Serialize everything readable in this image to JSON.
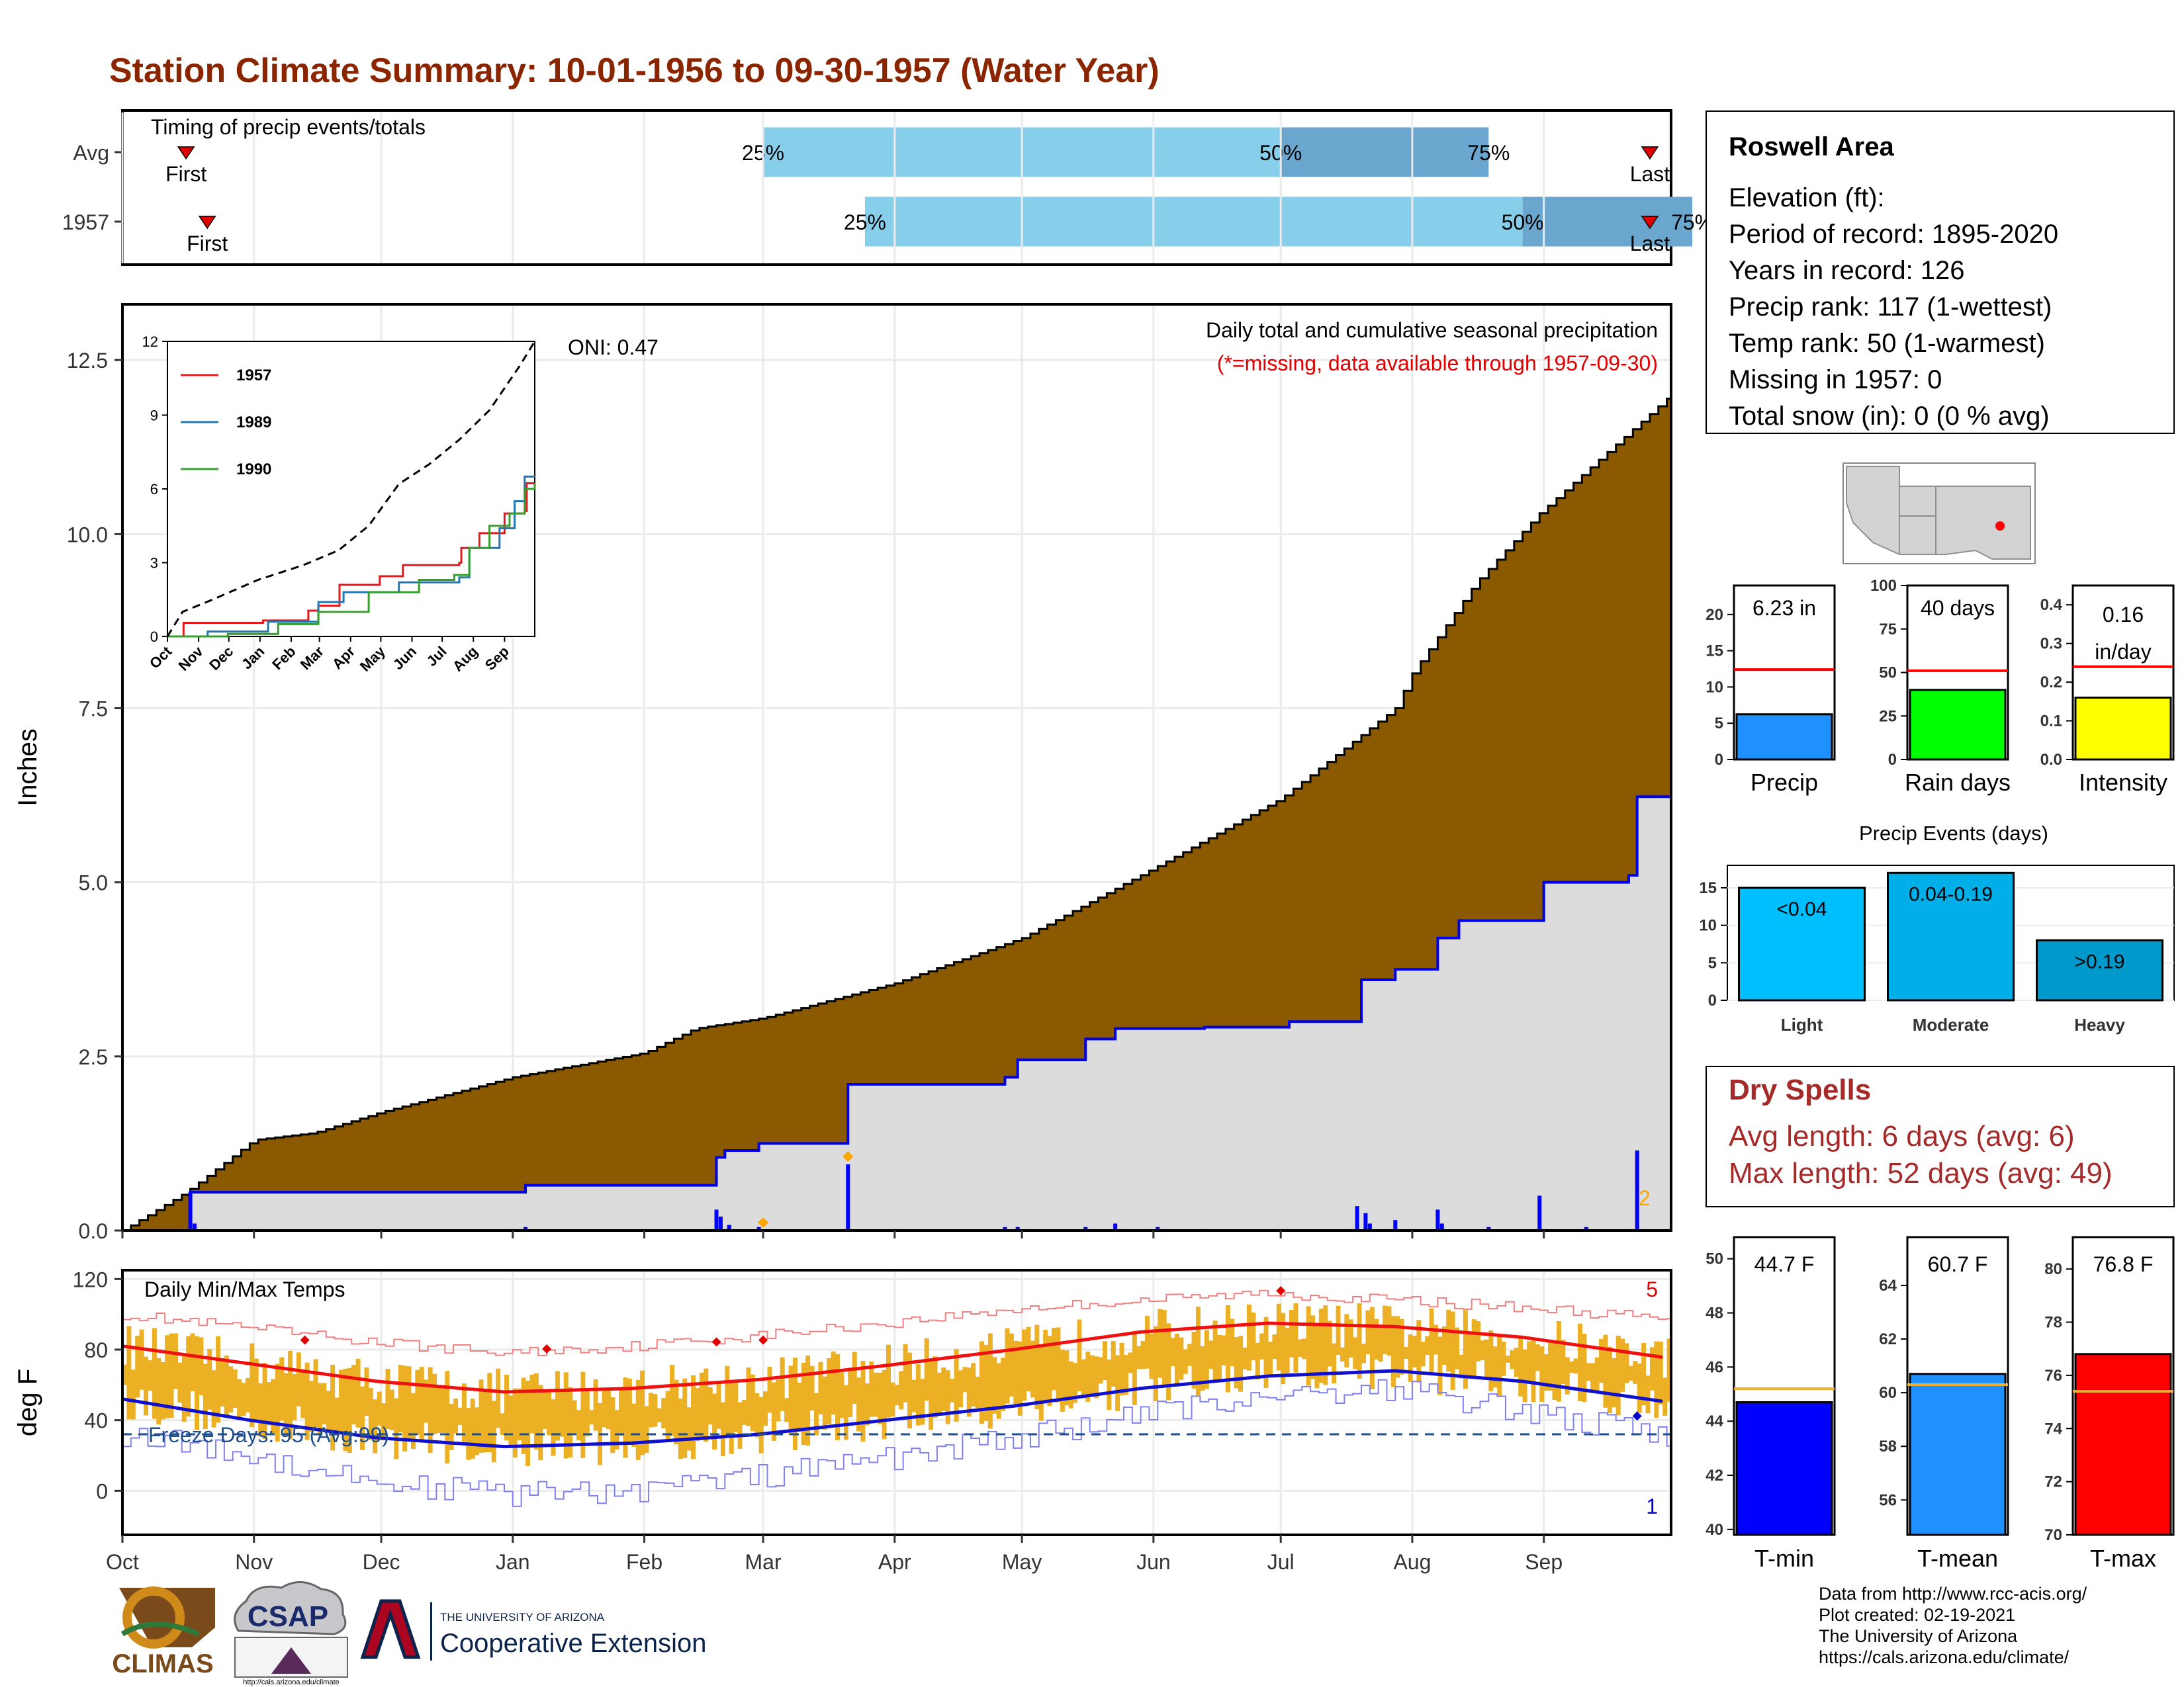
{
  "title": "Station Climate Summary: 10-01-1956 to 09-30-1957 (Water Year)",
  "timing": {
    "label": "Timing of precip events/totals",
    "rows": [
      {
        "name": "Avg",
        "first": "First",
        "last": "Last",
        "first_day": 15,
        "last_day": 360,
        "p25_day": 151,
        "p50_day": 273,
        "p75_day": 322
      },
      {
        "name": "1957",
        "first": "First",
        "last": "Last",
        "first_day": 20,
        "last_day": 360,
        "p25_day": 175,
        "p50_day": 330,
        "p75_day": 370
      }
    ],
    "labels": {
      "p25": "25%",
      "p50": "50%",
      "p75": "75%"
    },
    "colors": {
      "light": "#87ceeb",
      "dark": "#6aa6cd",
      "marker": "#e00000"
    }
  },
  "precip_panel": {
    "ylabel": "Inches",
    "yticks": [
      "0.0",
      "2.5",
      "5.0",
      "7.5",
      "10.0",
      "12.5"
    ],
    "ylim": [
      0,
      13.3
    ],
    "title": "Daily total and cumulative seasonal precipitation",
    "subtitle": "(*=missing, data available through 1957-09-30)",
    "oni": "ONI: 0.47",
    "count_label": "2",
    "colors": {
      "avg_fill": "#8b5a00",
      "year_fill": "#dcdcdc",
      "year_line": "#0000e6",
      "bars": "#0000ff",
      "marker": "#ffa500",
      "subtitle": "#e00000"
    }
  },
  "chart_data": [
    {
      "type": "area",
      "name": "cumulative-precip",
      "x_unit": "day of water year (0 = Oct 1)",
      "series": [
        {
          "name": "avg",
          "x": [
            0,
            15,
            31,
            45,
            61,
            92,
            123,
            135,
            151,
            182,
            212,
            243,
            273,
            300,
            304,
            319,
            334,
            365
          ],
          "y": [
            0,
            0.55,
            1.3,
            1.4,
            1.7,
            2.2,
            2.55,
            2.9,
            3.05,
            3.55,
            4.2,
            5.2,
            6.2,
            7.5,
            8.0,
            9.3,
            10.3,
            12.0
          ]
        },
        {
          "name": "1957",
          "x": [
            0,
            15,
            16,
            94,
            95,
            139,
            140,
            142,
            150,
            170,
            171,
            208,
            211,
            227,
            234,
            255,
            275,
            290,
            292,
            300,
            310,
            315,
            335,
            355,
            357,
            365
          ],
          "y": [
            0,
            0,
            0.55,
            0.55,
            0.65,
            0.65,
            1.05,
            1.15,
            1.25,
            1.25,
            2.1,
            2.2,
            2.45,
            2.75,
            2.9,
            2.92,
            3.0,
            3.0,
            3.6,
            3.75,
            4.2,
            4.45,
            5.0,
            5.1,
            6.23,
            6.23
          ]
        }
      ],
      "daily_bars": [
        {
          "day": 16,
          "value": 0.55
        },
        {
          "day": 17,
          "value": 0.1
        },
        {
          "day": 95,
          "value": 0.05
        },
        {
          "day": 140,
          "value": 0.3
        },
        {
          "day": 141,
          "value": 0.2
        },
        {
          "day": 143,
          "value": 0.08
        },
        {
          "day": 150,
          "value": 0.05
        },
        {
          "day": 171,
          "value": 0.95
        },
        {
          "day": 208,
          "value": 0.05
        },
        {
          "day": 211,
          "value": 0.05
        },
        {
          "day": 227,
          "value": 0.05
        },
        {
          "day": 234,
          "value": 0.1
        },
        {
          "day": 244,
          "value": 0.05
        },
        {
          "day": 255,
          "value": 0.02
        },
        {
          "day": 291,
          "value": 0.35
        },
        {
          "day": 293,
          "value": 0.25
        },
        {
          "day": 294,
          "value": 0.1
        },
        {
          "day": 300,
          "value": 0.15
        },
        {
          "day": 310,
          "value": 0.3
        },
        {
          "day": 311,
          "value": 0.1
        },
        {
          "day": 322,
          "value": 0.05
        },
        {
          "day": 334,
          "value": 0.5
        },
        {
          "day": 345,
          "value": 0.05
        },
        {
          "day": 357,
          "value": 1.15
        }
      ]
    },
    {
      "type": "line",
      "name": "inset-cumulative",
      "xlabels": [
        "Oct",
        "Nov",
        "Dec",
        "Jan",
        "Feb",
        "Mar",
        "Apr",
        "May",
        "Jun",
        "Jul",
        "Aug",
        "Sep"
      ],
      "yticks": [
        "0",
        "3",
        "6",
        "9",
        "12"
      ],
      "ylim": [
        0,
        12
      ],
      "series": [
        {
          "name": "1957",
          "color": "#e31a1c",
          "x": [
            0,
            15,
            16,
            94,
            95,
            139,
            140,
            150,
            170,
            171,
            211,
            234,
            290,
            292,
            310,
            335,
            355,
            357,
            365
          ],
          "y": [
            0,
            0,
            0.55,
            0.55,
            0.65,
            0.65,
            1.05,
            1.25,
            1.25,
            2.1,
            2.45,
            2.9,
            3.0,
            3.6,
            4.2,
            5.0,
            5.1,
            6.23,
            6.23
          ]
        },
        {
          "name": "1989",
          "color": "#1f78b4",
          "x": [
            0,
            40,
            100,
            150,
            175,
            230,
            290,
            300,
            330,
            345,
            355,
            365
          ],
          "y": [
            0,
            0.2,
            0.6,
            1.4,
            1.8,
            2.2,
            2.4,
            3.6,
            4.4,
            5.5,
            6.5,
            6.5
          ]
        },
        {
          "name": "1990",
          "color": "#33a02c",
          "x": [
            0,
            60,
            110,
            150,
            200,
            250,
            285,
            300,
            320,
            340,
            355,
            365
          ],
          "y": [
            0,
            0.1,
            0.5,
            1.0,
            1.8,
            2.3,
            2.5,
            3.6,
            4.5,
            5.0,
            6.0,
            6.2
          ]
        },
        {
          "name": "max",
          "color": "#000000",
          "x": [
            0,
            15,
            45,
            90,
            135,
            170,
            200,
            230,
            260,
            290,
            320,
            350,
            365
          ],
          "y": [
            0,
            1.0,
            1.5,
            2.3,
            2.9,
            3.5,
            4.5,
            6.2,
            7.0,
            8.0,
            9.2,
            11.0,
            12.0
          ]
        }
      ]
    },
    {
      "type": "line",
      "name": "temperature",
      "ylabel": "deg F",
      "title": "Daily Min/Max Temps",
      "freeze": "Freeze Days: 95 (Avg:99)",
      "ylim": [
        -25,
        125
      ],
      "yticks": [
        "0",
        "40",
        "80",
        "120"
      ],
      "freeze_line": 32,
      "count_top": "5",
      "count_bottom": "1",
      "months": [
        "Oct",
        "Nov",
        "Dec",
        "Jan",
        "Feb",
        "Mar",
        "Apr",
        "May",
        "Jun",
        "Jul",
        "Aug",
        "Sep"
      ],
      "month_days": [
        0,
        31,
        61,
        92,
        123,
        151,
        182,
        212,
        243,
        273,
        304,
        335
      ],
      "avg_max": {
        "x": [
          0,
          30,
          60,
          90,
          120,
          150,
          180,
          210,
          240,
          270,
          300,
          330,
          365
        ],
        "y": [
          82,
          72,
          62,
          56,
          58,
          63,
          71,
          80,
          90,
          95,
          93,
          87,
          75
        ]
      },
      "avg_min": {
        "x": [
          0,
          30,
          60,
          90,
          120,
          150,
          180,
          210,
          240,
          270,
          300,
          330,
          365
        ],
        "y": [
          52,
          40,
          30,
          25,
          27,
          32,
          40,
          48,
          58,
          65,
          68,
          62,
          50
        ]
      },
      "record_max": {
        "x": [
          0,
          30,
          60,
          90,
          120,
          150,
          180,
          210,
          240,
          270,
          300,
          330,
          365
        ],
        "y": [
          100,
          92,
          84,
          78,
          82,
          88,
          95,
          103,
          108,
          112,
          108,
          104,
          97
        ]
      },
      "record_min": {
        "x": [
          0,
          30,
          60,
          90,
          120,
          150,
          180,
          210,
          240,
          270,
          300,
          330,
          365
        ],
        "y": [
          32,
          20,
          5,
          -2,
          0,
          8,
          18,
          30,
          42,
          55,
          58,
          45,
          30
        ]
      },
      "colors": {
        "bars": "#ebb024",
        "max": "#ee1111",
        "min": "#1111cc",
        "record_max": "#f08080",
        "record_min": "#8080f0",
        "freeze": "#1f4e8c"
      }
    },
    {
      "type": "bar",
      "name": "precip-gauge",
      "label": "Precip",
      "value_label": "6.23 in",
      "value": 6.23,
      "avg": 12.4,
      "ylim": [
        0,
        24
      ],
      "yticks": [
        "0",
        "5",
        "10",
        "15",
        "20"
      ],
      "color": "#1e90ff"
    },
    {
      "type": "bar",
      "name": "raindays-gauge",
      "label": "Rain days",
      "value_label": "40 days",
      "value": 40,
      "avg": 51,
      "ylim": [
        0,
        100
      ],
      "yticks": [
        "0",
        "25",
        "50",
        "75",
        "100"
      ],
      "color": "#00ff00"
    },
    {
      "type": "bar",
      "name": "intensity-gauge",
      "label": "Intensity",
      "value_label": "0.16 in/day",
      "value": 0.16,
      "avg": 0.24,
      "ylim": [
        0,
        0.45
      ],
      "yticks": [
        "0.0",
        "0.1",
        "0.2",
        "0.3",
        "0.4"
      ],
      "color": "#ffff00"
    },
    {
      "type": "bar",
      "name": "precip-events",
      "title": "Precip Events (days)",
      "categories": [
        "Light",
        "Moderate",
        "Heavy"
      ],
      "bar_labels": [
        "<0.04",
        "0.04-0.19",
        ">0.19"
      ],
      "values": [
        15,
        17,
        8
      ],
      "ylim": [
        0,
        18
      ],
      "yticks": [
        "0",
        "5",
        "10",
        "15"
      ],
      "colors": [
        "#00bfff",
        "#00aee8",
        "#0099cc"
      ]
    },
    {
      "type": "bar",
      "name": "tmin-gauge",
      "label": "T-min",
      "value_label": "44.7 F",
      "value": 44.7,
      "avg": 45.2,
      "ylim": [
        39.8,
        50.8
      ],
      "yticks": [
        "40",
        "42",
        "44",
        "46",
        "48",
        "50"
      ],
      "color": "#0000ff"
    },
    {
      "type": "bar",
      "name": "tmean-gauge",
      "label": "T-mean",
      "value_label": "60.7 F",
      "value": 60.7,
      "avg": 60.3,
      "ylim": [
        54.7,
        65.8
      ],
      "yticks": [
        "56",
        "58",
        "60",
        "62",
        "64"
      ],
      "color": "#1e90ff"
    },
    {
      "type": "bar",
      "name": "tmax-gauge",
      "label": "T-max",
      "value_label": "76.8 F",
      "value": 76.8,
      "avg": 75.4,
      "ylim": [
        70,
        81.2
      ],
      "yticks": [
        "70",
        "72",
        "74",
        "76",
        "78",
        "80"
      ],
      "color": "#ff0000"
    }
  ],
  "station": {
    "name": "Roswell Area",
    "lines": [
      "Elevation (ft):",
      "Period of record: 1895-2020",
      "Years in record: 126",
      "Precip rank: 117 (1-wettest)",
      "Temp rank: 50 (1-warmest)",
      "Missing in 1957: 0",
      "Total snow (in): 0 (0 % avg)"
    ]
  },
  "dry_spells": {
    "title": "Dry Spells",
    "avg": "Avg length: 6 days (avg: 6)",
    "max": "Max length: 52 days (avg: 49)",
    "color": "#a52a2a"
  },
  "logos": {
    "climas": "CLIMAS",
    "csap": "CSAP",
    "csap_url": "http://cals.arizona.edu/climate",
    "ua_small": "THE UNIVERSITY OF ARIZONA",
    "ua_big": "Cooperative Extension"
  },
  "credits": [
    "Data from http://www.rcc-acis.org/",
    "Plot created: 02-19-2021",
    "The University of Arizona",
    "https://cals.arizona.edu/climate/"
  ]
}
